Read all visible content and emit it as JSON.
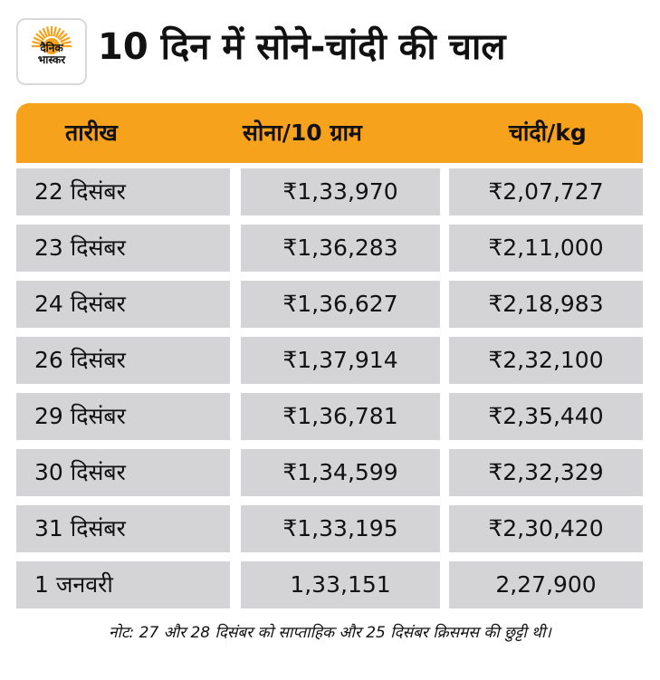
{
  "logo": {
    "line1": "दैनिक",
    "line2": "भास्कर",
    "sun_color": "#f7a21c"
  },
  "title": "10 दिन में सोने-चांदी की चाल",
  "table": {
    "header_color": "#f7a21c",
    "cell_color": "#d4d4d6",
    "headers": {
      "date": "तारीख",
      "gold": "सोना/10 ग्राम",
      "silver": "चांदी/kg"
    },
    "rows": [
      {
        "date": "22 दिसंबर",
        "gold": "₹1,33,970",
        "silver": "₹2,07,727"
      },
      {
        "date": "23 दिसंबर",
        "gold": "₹1,36,283",
        "silver": "₹2,11,000"
      },
      {
        "date": "24 दिसंबर",
        "gold": "₹1,36,627",
        "silver": "₹2,18,983"
      },
      {
        "date": "26 दिसंबर",
        "gold": "₹1,37,914",
        "silver": "₹2,32,100"
      },
      {
        "date": "29 दिसंबर",
        "gold": "₹1,36,781",
        "silver": "₹2,35,440"
      },
      {
        "date": "30 दिसंबर",
        "gold": "₹1,34,599",
        "silver": "₹2,32,329"
      },
      {
        "date": "31 दिसंबर",
        "gold": "₹1,33,195",
        "silver": "₹2,30,420"
      },
      {
        "date": "1 जनवरी",
        "gold": "1,33,151",
        "silver": "2,27,900"
      }
    ]
  },
  "note": "नोट: 27 और 28 दिसंबर को साप्ताहिक और 25 दिसंबर क्रिसमस की छुट्टी थी।"
}
